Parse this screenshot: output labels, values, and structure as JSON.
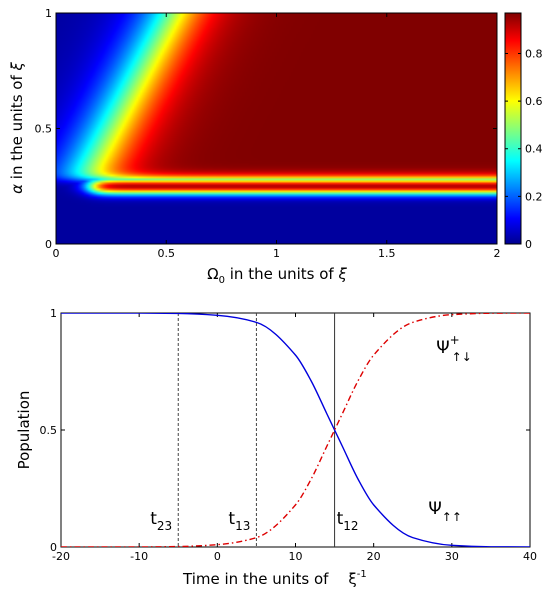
{
  "chart_data": [
    {
      "type": "heatmap",
      "xlabel": "Ω",
      "xlabel_sub": "0",
      "xlabel_rest": " in the units of ",
      "xlabel_italic": "ξ",
      "ylabel_greek": "α",
      "ylabel_rest": " in the units of ",
      "ylabel_italic": "ξ",
      "xlim": [
        0,
        2
      ],
      "ylim": [
        0,
        1
      ],
      "xticks": [
        0,
        0.5,
        1,
        1.5,
        2
      ],
      "xtick_labels": [
        "0",
        "0.5",
        "1",
        "1.5",
        "2"
      ],
      "yticks": [
        0,
        0.5,
        1
      ],
      "ytick_labels": [
        "0",
        "0.5",
        "1"
      ],
      "colorbar": {
        "range": [
          0,
          0.97
        ],
        "ticks": [
          0,
          0.2,
          0.4,
          0.6,
          0.8
        ],
        "tick_labels": [
          "0",
          "0.2",
          "0.4",
          "0.6",
          "0.8"
        ],
        "colormap": "jet"
      },
      "features": {
        "threshold_alpha": 0.28,
        "band_center_alpha": 0.25,
        "band_half_width": 0.035,
        "corner_omega": 0.13,
        "edge_top_omega": 0.53,
        "edge_width": 0.1
      }
    },
    {
      "type": "line",
      "xlabel": "Time in the units of",
      "xlabel_symbol": "ξ",
      "xlabel_sup": "-1",
      "ylabel": "Population",
      "xlim": [
        -20,
        40
      ],
      "ylim": [
        0,
        1
      ],
      "xticks": [
        -20,
        -10,
        0,
        10,
        20,
        30,
        40
      ],
      "xtick_labels": [
        "-20",
        "-10",
        "0",
        "10",
        "20",
        "30",
        "40"
      ],
      "yticks": [
        0,
        0.5,
        1
      ],
      "ytick_labels": [
        "0",
        "0.5",
        "1"
      ],
      "series": [
        {
          "name": "Ψ↑↑",
          "color": "#0000dd",
          "style": "solid",
          "x": [
            -20,
            -10,
            -5,
            0,
            5,
            10,
            12,
            14,
            15,
            16,
            18,
            20,
            25,
            30,
            35,
            40
          ],
          "y": [
            1,
            0.9997,
            0.998,
            0.99,
            0.96,
            0.82,
            0.71,
            0.57,
            0.5,
            0.43,
            0.29,
            0.18,
            0.04,
            0.007,
            0.001,
            0
          ]
        },
        {
          "name": "Ψ+↑↓",
          "color": "#dd0000",
          "style": "dashdot",
          "x": [
            -20,
            -10,
            -5,
            0,
            5,
            10,
            12,
            14,
            15,
            16,
            18,
            20,
            25,
            30,
            35,
            40
          ],
          "y": [
            0,
            0.0003,
            0.002,
            0.01,
            0.04,
            0.18,
            0.29,
            0.43,
            0.5,
            0.57,
            0.71,
            0.82,
            0.96,
            0.993,
            0.999,
            1
          ]
        }
      ],
      "vlines": [
        {
          "x": -5,
          "label": "t",
          "sub": "23",
          "style": "dashed"
        },
        {
          "x": 5,
          "label": "t",
          "sub": "13",
          "style": "dashed"
        },
        {
          "x": 15,
          "label": "t",
          "sub": "12",
          "style": "solid"
        }
      ],
      "annotations": [
        {
          "label": "Ψ",
          "sup": "+",
          "sub": "↑↓",
          "x": 28,
          "y": 0.83
        },
        {
          "label": "Ψ",
          "sub": "↑↑",
          "x": 27,
          "y": 0.14
        }
      ]
    }
  ]
}
